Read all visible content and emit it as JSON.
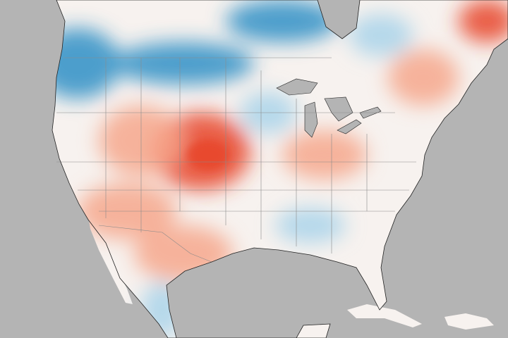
{
  "map": {
    "colors": {
      "ocean": "#b4b4b4",
      "land_base": "#f7f2ef",
      "warm": "#e8452c",
      "warm_light": "#f6a78c",
      "cool": "#2f8fc6",
      "cool_light": "#a9d3ea",
      "borders": "#8a8a8a",
      "coastline": "#222222"
    }
  }
}
